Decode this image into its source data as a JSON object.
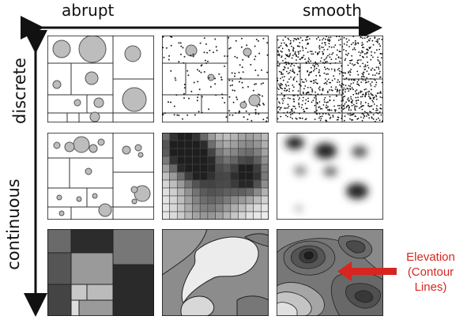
{
  "axis": {
    "horizontal_left": "abrupt",
    "horizontal_right": "smooth",
    "vertical_top": "discrete",
    "vertical_bottom": "continuous"
  },
  "annotation": {
    "lines": [
      "Elevation",
      "(Contour",
      "Lines)"
    ],
    "color": "#d6261f"
  },
  "grid": {
    "rows": 3,
    "cols": 3,
    "panels": [
      {
        "id": "discrete-abrupt",
        "style": "proportional circles in polygons"
      },
      {
        "id": "discrete-mid",
        "style": "scattered points in polygons"
      },
      {
        "id": "discrete-smooth",
        "style": "dense dot map"
      },
      {
        "id": "mid-abrupt",
        "style": "proportional circles in polygons"
      },
      {
        "id": "mid-mid",
        "style": "gray raster grid"
      },
      {
        "id": "mid-smooth",
        "style": "blurred density spots"
      },
      {
        "id": "continuous-abrupt",
        "style": "choropleth blocks"
      },
      {
        "id": "continuous-mid",
        "style": "smooth isoline regions"
      },
      {
        "id": "continuous-smooth",
        "style": "contour lines"
      }
    ]
  }
}
